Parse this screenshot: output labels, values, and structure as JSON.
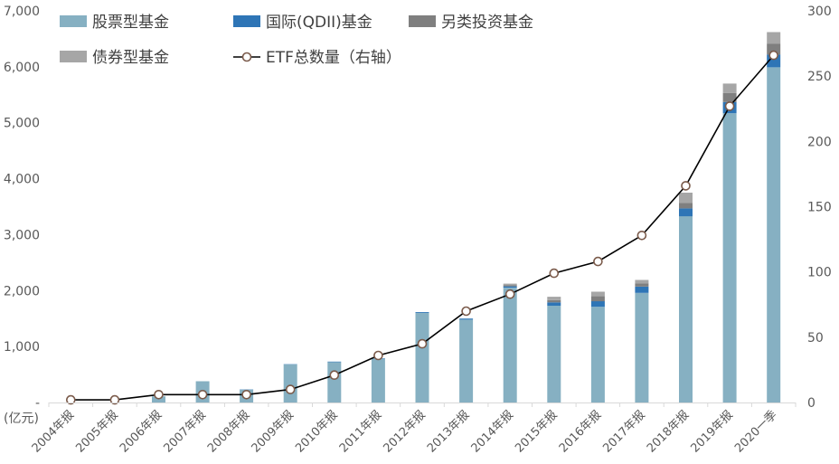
{
  "chart_data": {
    "type": "bar",
    "stacked": true,
    "unit_label": "(亿元)",
    "categories": [
      "2004年报",
      "2005年报",
      "2006年报",
      "2007年报",
      "2008年报",
      "2009年报",
      "2010年报",
      "2011年报",
      "2012年报",
      "2013年报",
      "2014年报",
      "2015年报",
      "2016年报",
      "2017年报",
      "2018年报",
      "2019年报",
      "2020一季"
    ],
    "left_axis": {
      "ylim": [
        0,
        7000
      ],
      "ticks": [
        0,
        1000,
        2000,
        3000,
        4000,
        5000,
        6000,
        7000
      ],
      "tick_labels": [
        "-",
        "1,000",
        "2,000",
        "3,000",
        "4,000",
        "5,000",
        "6,000",
        "7,000"
      ]
    },
    "right_axis": {
      "ylim": [
        0,
        300
      ],
      "ticks": [
        0,
        50,
        100,
        150,
        200,
        250,
        300
      ],
      "tick_labels": [
        "0",
        "50",
        "100",
        "150",
        "200",
        "250",
        "300"
      ]
    },
    "series": [
      {
        "name": "股票型基金",
        "axis": "left",
        "color": "#86b0c2",
        "values": [
          0,
          0,
          110,
          380,
          230,
          680,
          720,
          780,
          1600,
          1480,
          2050,
          1730,
          1710,
          1960,
          3330,
          5170,
          5990
        ]
      },
      {
        "name": "国际(QDII)基金",
        "axis": "left",
        "color": "#2e75b6",
        "values": [
          0,
          0,
          0,
          0,
          5,
          5,
          10,
          10,
          15,
          20,
          25,
          60,
          100,
          110,
          140,
          200,
          230
        ]
      },
      {
        "name": "另类投资基金",
        "axis": "left",
        "color": "#7f7f7f",
        "values": [
          0,
          0,
          0,
          0,
          0,
          0,
          0,
          0,
          0,
          0,
          20,
          40,
          90,
          60,
          100,
          160,
          190
        ]
      },
      {
        "name": "债券型基金",
        "axis": "left",
        "color": "#a6a6a6",
        "values": [
          0,
          0,
          0,
          0,
          0,
          0,
          0,
          0,
          0,
          0,
          30,
          60,
          80,
          60,
          180,
          170,
          210
        ]
      },
      {
        "name": "ETF总数量（右轴）",
        "axis": "right",
        "type": "line",
        "color": "#000000",
        "marker_fill": "#ffffff",
        "marker_stroke": "#7b5b4b",
        "values": [
          2,
          2,
          6,
          6,
          6,
          10,
          21,
          36,
          45,
          70,
          83,
          99,
          108,
          128,
          166,
          227,
          266
        ]
      }
    ],
    "legend_position": "top",
    "grid": false
  }
}
